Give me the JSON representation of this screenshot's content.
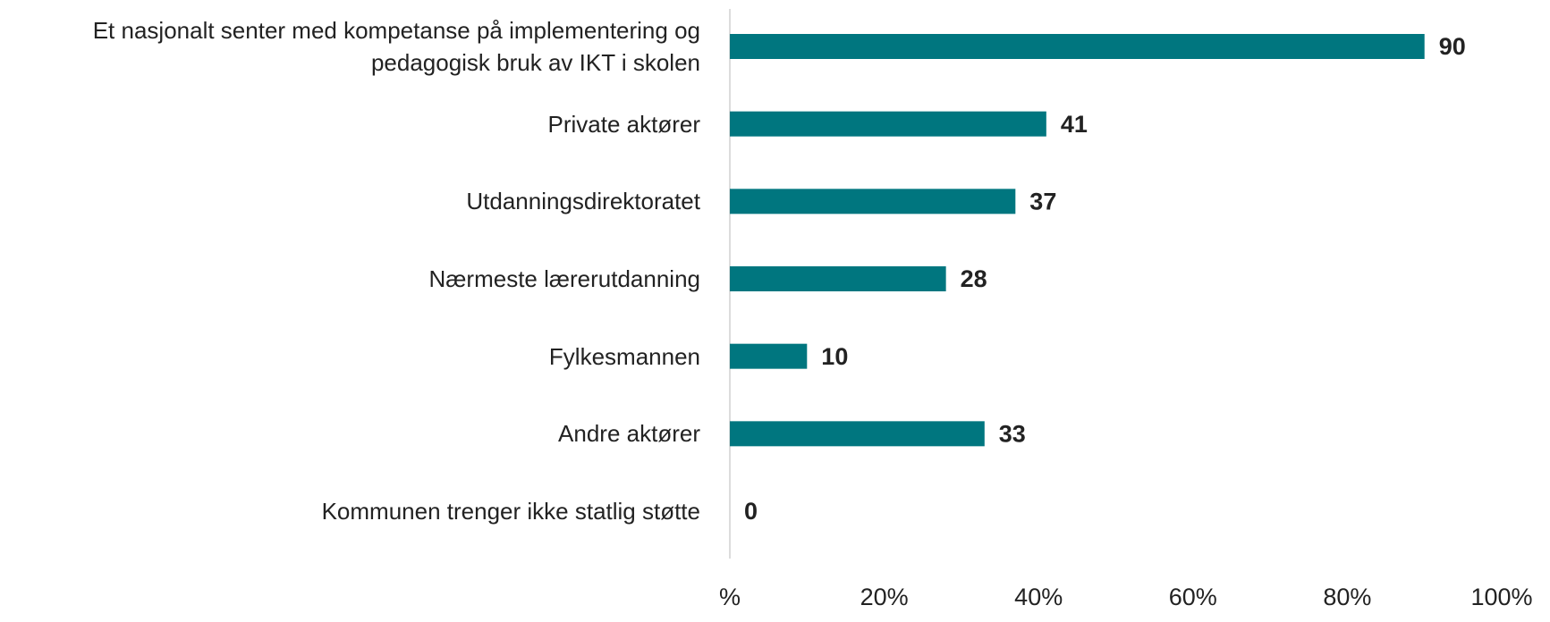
{
  "chart_data": {
    "type": "bar",
    "orientation": "horizontal",
    "categories": [
      "Et nasjonalt senter med kompetanse på implementering og\npedagogisk bruk av IKT i skolen",
      "Private aktører",
      "Utdanningsdirektoratet",
      "Nærmeste lærerutdanning",
      "Fylkesmannen",
      "Andre aktører",
      "Kommunen trenger ikke statlig støtte"
    ],
    "values": [
      90,
      41,
      37,
      28,
      10,
      33,
      0
    ],
    "color": "#00767f",
    "xlim": [
      0,
      100
    ],
    "xticks": [
      {
        "value": 0,
        "label": "%"
      },
      {
        "value": 20,
        "label": "20%"
      },
      {
        "value": 40,
        "label": "40%"
      },
      {
        "value": 60,
        "label": "60%"
      },
      {
        "value": 80,
        "label": "80%"
      },
      {
        "value": 100,
        "label": "100%"
      }
    ],
    "grid": false
  }
}
